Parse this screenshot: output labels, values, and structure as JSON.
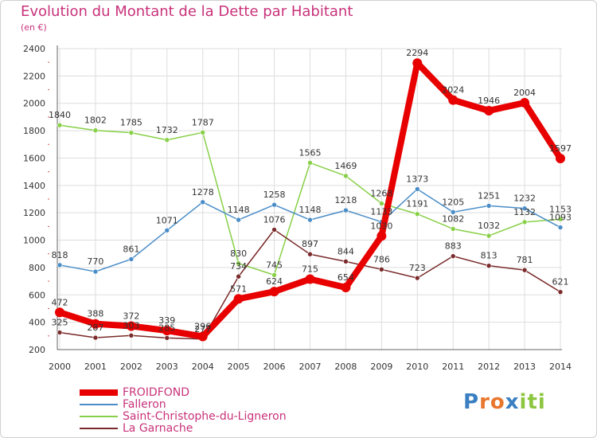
{
  "header": {
    "title": "Evolution du Montant de la Dette par Habitant",
    "subtitle": "(en €)"
  },
  "colors": {
    "title": "#c8327a",
    "axis_text": "#333333",
    "grid": "#dddddd"
  },
  "logo": {
    "text": "Proxiti",
    "letters": [
      "P",
      "r",
      "o",
      "x",
      "i",
      "t",
      "i"
    ],
    "letter_colors": [
      "#3a7fc1",
      "#e8762c",
      "#e8762c",
      "#3a7fc1",
      "#8cc63f",
      "#8cc63f",
      "#8cc63f"
    ]
  },
  "chart_data": {
    "type": "line",
    "title": "Evolution du Montant de la Dette par Habitant",
    "subtitle": "(en €)",
    "xlabel": "",
    "ylabel": "",
    "x": [
      2000,
      2001,
      2002,
      2003,
      2004,
      2005,
      2006,
      2007,
      2008,
      2009,
      2010,
      2011,
      2012,
      2013,
      2014
    ],
    "ylim": [
      200,
      2400
    ],
    "yticks": [
      200,
      400,
      600,
      800,
      1000,
      1200,
      1400,
      1600,
      1800,
      2000,
      2200,
      2400
    ],
    "grid": true,
    "legend_position": "bottom-left",
    "series": [
      {
        "name": "FROIDFOND",
        "color": "#e80000",
        "values": [
          472,
          388,
          372,
          339,
          296,
          571,
          624,
          715,
          654,
          1030,
          2294,
          2024,
          1946,
          2004,
          1597
        ],
        "labels": [
          "472",
          "388",
          "372",
          "339",
          "296",
          "571",
          "624",
          "715",
          "654",
          "1030",
          "2294",
          "2024",
          "1946",
          "2004",
          "1597"
        ]
      },
      {
        "name": "Falleron",
        "color": "#4a8dc8",
        "values": [
          818,
          770,
          861,
          1071,
          1278,
          1148,
          1258,
          1148,
          1218,
          1133,
          1373,
          1205,
          1251,
          1232,
          1093
        ],
        "labels": [
          "818",
          "770",
          "861",
          "1071",
          "1278",
          "1148",
          "1258",
          "1148",
          "1218",
          "1133",
          "1373",
          "1205",
          "1251",
          "1232",
          "1093"
        ]
      },
      {
        "name": "Saint-Christophe-du-Ligneron",
        "color": "#88d048",
        "values": [
          1840,
          1802,
          1785,
          1732,
          1787,
          830,
          745,
          1565,
          1469,
          1268,
          1191,
          1082,
          1032,
          1132,
          1153
        ],
        "labels": [
          "1840",
          "1802",
          "1785",
          "1732",
          "1787",
          "830",
          "745",
          "1565",
          "1469",
          "1268",
          "1191",
          "1082",
          "1032",
          "1132",
          "1153"
        ]
      },
      {
        "name": "La Garnache",
        "color": "#7a2a2a",
        "values": [
          325,
          287,
          303,
          285,
          277,
          734,
          1076,
          897,
          844,
          786,
          723,
          883,
          813,
          781,
          621
        ],
        "labels": [
          "325",
          "287",
          "303",
          "285",
          "277",
          "734",
          "1076",
          "897",
          "844",
          "786",
          "723",
          "883",
          "813",
          "781",
          "621"
        ]
      }
    ]
  }
}
